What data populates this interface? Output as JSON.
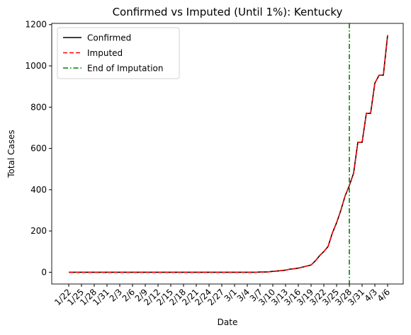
{
  "chart_data": {
    "type": "line",
    "title": "Confirmed vs Imputed (Until 1%): Kentucky",
    "x_label": "Date",
    "y_label": "Total Cases",
    "categories": [
      "1/22",
      null,
      null,
      "1/25",
      null,
      null,
      "1/28",
      null,
      null,
      "1/31",
      null,
      null,
      "2/3",
      null,
      null,
      "2/6",
      null,
      null,
      "2/9",
      null,
      null,
      "2/12",
      null,
      null,
      "2/15",
      null,
      null,
      "2/18",
      null,
      null,
      "2/21",
      null,
      null,
      "2/24",
      null,
      null,
      "2/27",
      null,
      null,
      "3/1",
      null,
      null,
      "3/4",
      null,
      null,
      "3/7",
      null,
      null,
      "3/10",
      null,
      null,
      "3/13",
      null,
      null,
      "3/16",
      null,
      null,
      "3/19",
      null,
      null,
      "3/22",
      null,
      null,
      "3/25",
      null,
      null,
      "3/28",
      null,
      null,
      "3/31",
      null,
      null,
      "4/3",
      null,
      null,
      "4/6"
    ],
    "series": [
      {
        "name": "Confirmed",
        "color": "#000000",
        "dash": "solid",
        "values": [
          0,
          0,
          0,
          0,
          0,
          0,
          0,
          0,
          0,
          0,
          0,
          0,
          0,
          0,
          0,
          0,
          0,
          0,
          0,
          0,
          0,
          0,
          0,
          0,
          0,
          0,
          0,
          0,
          0,
          0,
          0,
          0,
          0,
          0,
          0,
          0,
          0,
          0,
          0,
          0,
          0,
          0,
          0,
          0,
          0,
          1,
          1,
          2,
          4,
          6,
          8,
          10,
          15,
          17,
          20,
          25,
          30,
          35,
          55,
          80,
          100,
          125,
          190,
          240,
          300,
          370,
          420,
          480,
          630,
          630,
          770,
          770,
          917,
          955,
          955,
          1149
        ]
      },
      {
        "name": "Imputed",
        "color": "#ff0000",
        "dash": "dashed",
        "values": [
          0,
          0,
          0,
          0,
          0,
          0,
          0,
          0,
          0,
          0,
          0,
          0,
          0,
          0,
          0,
          0,
          0,
          0,
          0,
          0,
          0,
          0,
          0,
          0,
          0,
          0,
          0,
          0,
          0,
          0,
          0,
          0,
          0,
          0,
          0,
          0,
          0,
          0,
          0,
          0,
          0,
          0,
          0,
          0,
          0,
          1,
          1,
          2,
          4,
          6,
          8,
          10,
          15,
          17,
          20,
          25,
          30,
          35,
          55,
          80,
          100,
          125,
          190,
          240,
          300,
          370,
          420,
          480,
          630,
          630,
          770,
          770,
          917,
          955,
          955,
          1149
        ]
      }
    ],
    "vline": {
      "name": "End of Imputation",
      "color": "#008000",
      "at": "3/28"
    },
    "ylim": [
      -57,
      1206
    ],
    "yticks": [
      0,
      200,
      400,
      600,
      800,
      1000,
      1200
    ],
    "legend": "upper left",
    "grid": false
  }
}
